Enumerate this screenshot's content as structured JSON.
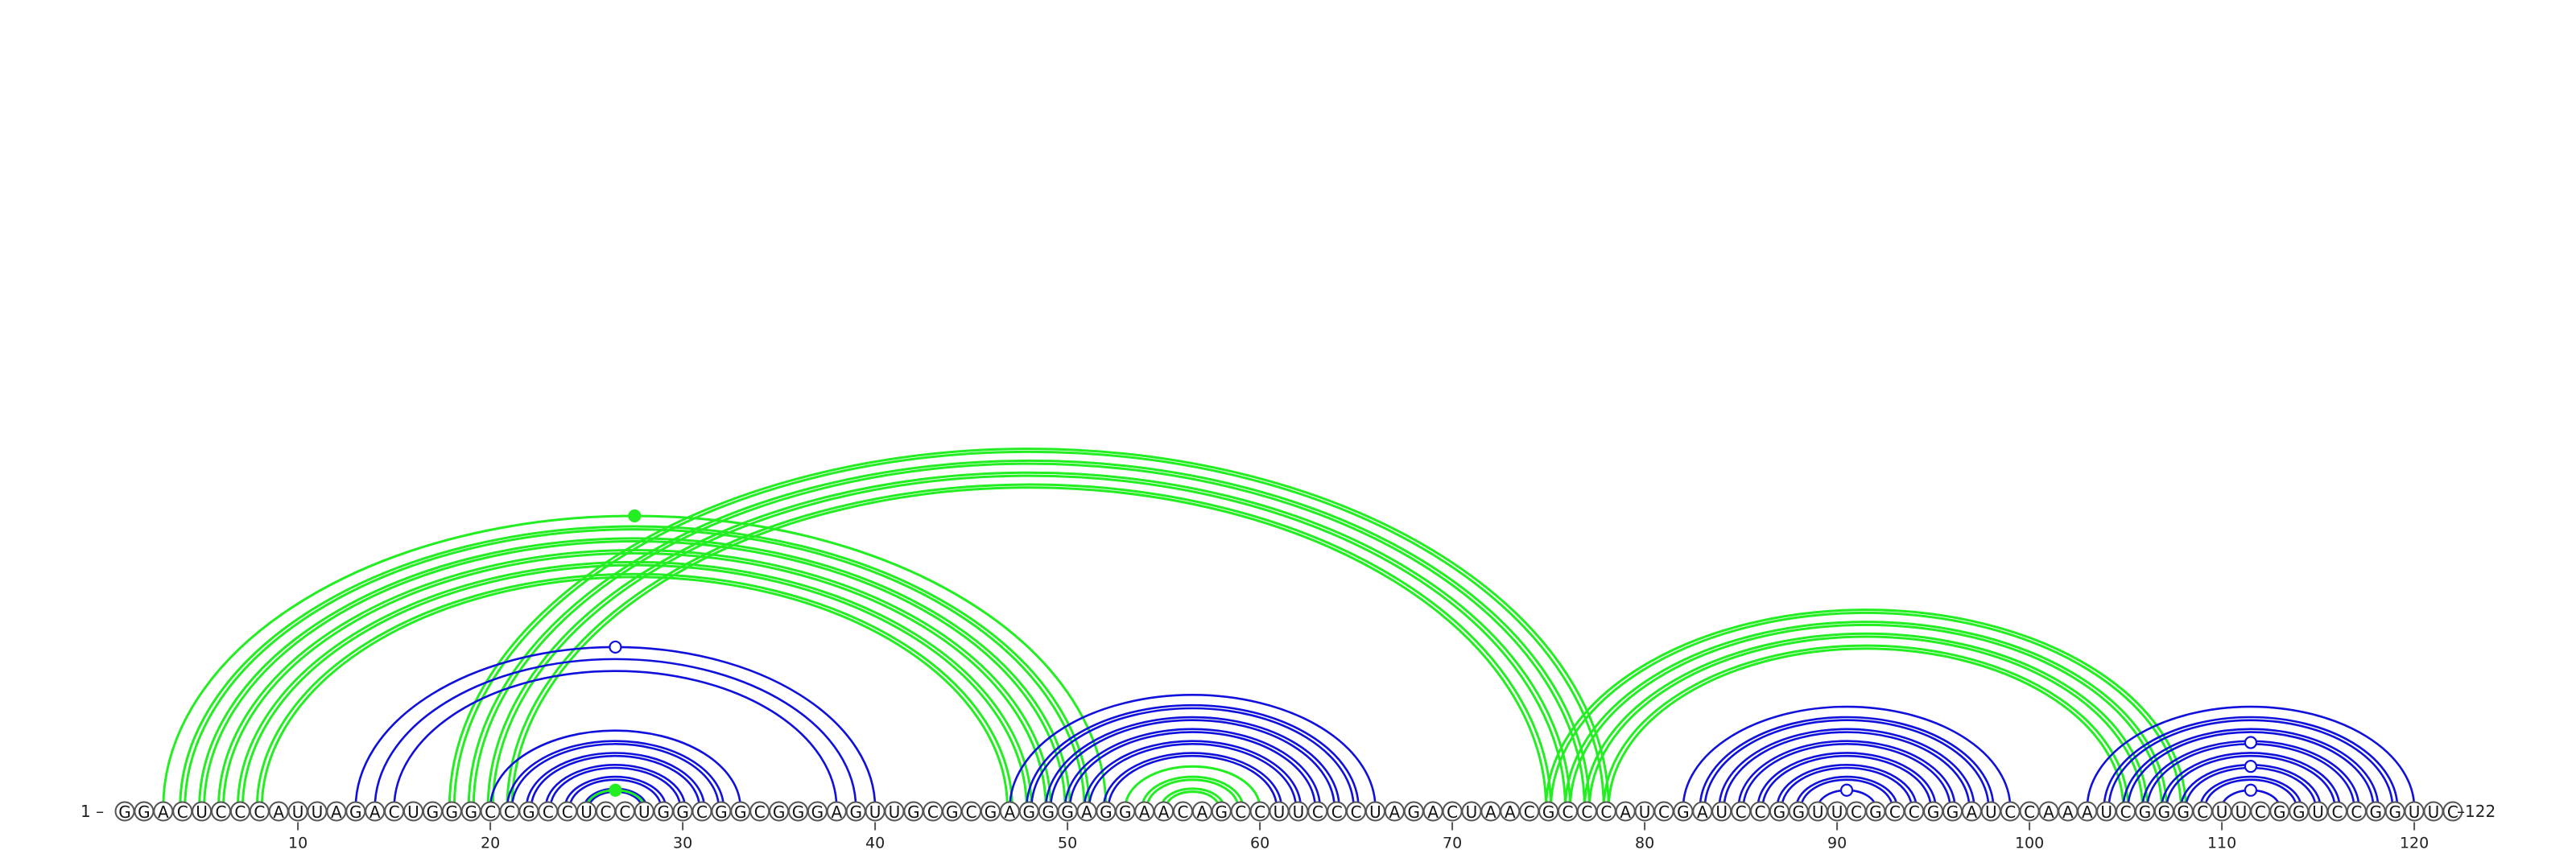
{
  "diagram": {
    "start_label": "1 –",
    "end_label": "–122",
    "sequence": "GGACUCCCAUUAGACUGGGCCGCCUCCUGGCGGCGGGAGUUGCGCGAGGGAGGAACAGCCUUCCCUAGACUAACGCCCAUCGAUCCGGUUCGCCGGAUCCAAAUCGGGCUUCGGUCCGGUUC",
    "length": 122,
    "ticks": [
      10,
      20,
      30,
      40,
      50,
      60,
      70,
      80,
      90,
      100,
      110,
      120
    ],
    "colors": {
      "blue_pairs": "#1010dd",
      "green_pairs": "#22ee22"
    },
    "arc_groups": [
      {
        "name": "outer-green-helix",
        "color": "green",
        "pairs": [
          [
            3,
            52
          ],
          [
            4,
            51
          ],
          [
            5,
            50
          ],
          [
            6,
            49
          ],
          [
            7,
            48
          ],
          [
            8,
            47
          ]
        ],
        "double": [
          false,
          true,
          true,
          true,
          true,
          true
        ],
        "marker": {
          "type": "filled",
          "pair": [
            3,
            52
          ]
        }
      },
      {
        "name": "green-pseudoknot-long",
        "color": "green",
        "pairs": [
          [
            18,
            78
          ],
          [
            19,
            77
          ],
          [
            20,
            76
          ],
          [
            21,
            75
          ]
        ],
        "double": [
          true,
          true,
          true,
          true
        ]
      },
      {
        "name": "blue-helix-13-40",
        "color": "blue",
        "pairs": [
          [
            13,
            40
          ],
          [
            14,
            39
          ],
          [
            15,
            38
          ]
        ],
        "double": [
          false,
          false,
          false
        ],
        "marker": {
          "type": "open",
          "pair": [
            13,
            40
          ]
        }
      },
      {
        "name": "blue-hairpin-20-33",
        "color": "blue",
        "pairs": [
          [
            20,
            33
          ],
          [
            21,
            32
          ],
          [
            22,
            31
          ],
          [
            23,
            30
          ],
          [
            24,
            29
          ],
          [
            25,
            28
          ]
        ],
        "double": [
          false,
          true,
          true,
          true,
          true,
          true
        ]
      },
      {
        "name": "green-hairpin-25-28",
        "color": "green",
        "pairs": [
          [
            25,
            28
          ]
        ],
        "double": [
          false
        ],
        "marker": {
          "type": "filled",
          "pair": [
            25,
            28
          ]
        }
      },
      {
        "name": "blue-helix-47-66",
        "color": "blue",
        "pairs": [
          [
            47,
            66
          ],
          [
            48,
            65
          ],
          [
            49,
            64
          ],
          [
            50,
            63
          ],
          [
            51,
            62
          ],
          [
            52,
            61
          ]
        ],
        "double": [
          false,
          true,
          true,
          true,
          true,
          true
        ]
      },
      {
        "name": "green-hairpin-53-60",
        "color": "green",
        "pairs": [
          [
            53,
            60
          ],
          [
            54,
            59
          ],
          [
            55,
            58
          ]
        ],
        "double": [
          false,
          true,
          true
        ]
      },
      {
        "name": "green-helix-75-108",
        "color": "green",
        "pairs": [
          [
            75,
            108
          ],
          [
            76,
            107
          ],
          [
            77,
            106
          ],
          [
            78,
            105
          ]
        ],
        "double": [
          true,
          true,
          true,
          true
        ]
      },
      {
        "name": "blue-hairpin-82-99",
        "color": "blue",
        "pairs": [
          [
            82,
            99
          ],
          [
            83,
            98
          ],
          [
            84,
            97
          ],
          [
            85,
            96
          ],
          [
            86,
            95
          ],
          [
            87,
            94
          ],
          [
            88,
            93
          ],
          [
            89,
            92
          ]
        ],
        "double": [
          false,
          true,
          true,
          true,
          true,
          true,
          true,
          false
        ],
        "marker": {
          "type": "open",
          "pair": [
            89,
            92
          ]
        }
      },
      {
        "name": "blue-hairpin-103-120",
        "color": "blue",
        "pairs": [
          [
            103,
            120
          ],
          [
            104,
            119
          ],
          [
            105,
            118
          ],
          [
            106,
            117
          ],
          [
            107,
            116
          ],
          [
            108,
            115
          ],
          [
            109,
            114
          ],
          [
            110,
            113
          ]
        ],
        "double": [
          false,
          true,
          true,
          true,
          true,
          true,
          true,
          false
        ],
        "marker": {
          "type": "open",
          "pair": [
            110,
            113
          ]
        }
      },
      {
        "name": "blue-midmarker-106-117",
        "color": "blue",
        "pairs": [],
        "double": [],
        "marker": {
          "type": "open",
          "pair": [
            106,
            117
          ]
        }
      },
      {
        "name": "blue-midmarker-108-115",
        "color": "blue",
        "pairs": [],
        "double": [],
        "marker": {
          "type": "open",
          "pair": [
            108,
            115
          ]
        }
      }
    ]
  }
}
